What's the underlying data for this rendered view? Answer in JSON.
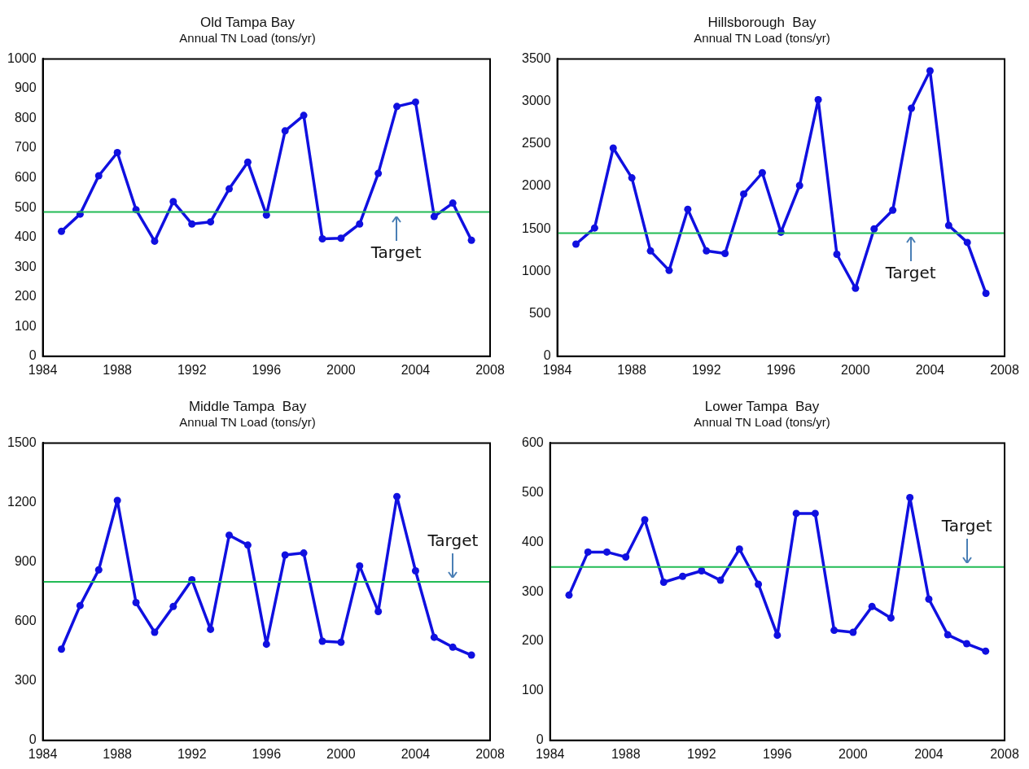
{
  "chart_data": [
    {
      "type": "line",
      "title": "Old Tampa Bay",
      "subtitle": "Annual TN Load (tons/yr)",
      "x": [
        1985,
        1986,
        1987,
        1988,
        1989,
        1990,
        1991,
        1992,
        1993,
        1994,
        1995,
        1996,
        1997,
        1998,
        1999,
        2000,
        2001,
        2002,
        2003,
        2004,
        2005,
        2006,
        2007
      ],
      "series": [
        {
          "color": "#1010e0",
          "values": [
            420,
            478,
            607,
            685,
            493,
            387,
            520,
            445,
            452,
            563,
            653,
            475,
            758,
            810,
            395,
            397,
            445,
            615,
            840,
            855,
            470,
            515,
            390
          ]
        }
      ],
      "xlim": [
        1984,
        2008
      ],
      "xticks": [
        1984,
        1988,
        1992,
        1996,
        2000,
        2004,
        2008
      ],
      "ylim": [
        0,
        1000
      ],
      "yticks": [
        0,
        100,
        200,
        300,
        400,
        500,
        600,
        700,
        800,
        900,
        1000
      ],
      "ref_lines": [
        {
          "axis": "y",
          "value": 485,
          "label": "Target",
          "color": "#22bb55"
        }
      ],
      "grid": false,
      "legend": false,
      "marker": "circle",
      "line_style": "solid"
    },
    {
      "type": "line",
      "title": "Hillsborough  Bay",
      "subtitle": "Annual TN Load (tons/yr)",
      "x": [
        1985,
        1986,
        1987,
        1988,
        1989,
        1990,
        1991,
        1992,
        1993,
        1994,
        1995,
        1996,
        1997,
        1998,
        1999,
        2000,
        2001,
        2002,
        2003,
        2004,
        2005,
        2006,
        2007
      ],
      "series": [
        {
          "color": "#1010e0",
          "values": [
            1320,
            1510,
            2450,
            2100,
            1240,
            1010,
            1730,
            1240,
            1210,
            1910,
            2160,
            1460,
            2010,
            3020,
            1200,
            800,
            1500,
            1720,
            2920,
            3360,
            1540,
            1340,
            740
          ]
        }
      ],
      "xlim": [
        1984,
        2008
      ],
      "xticks": [
        1984,
        1988,
        1992,
        1996,
        2000,
        2004,
        2008
      ],
      "ylim": [
        0,
        3500
      ],
      "yticks": [
        0,
        500,
        1000,
        1500,
        2000,
        2500,
        3000,
        3500
      ],
      "ref_lines": [
        {
          "axis": "y",
          "value": 1450,
          "label": "Target",
          "color": "#22bb55"
        }
      ],
      "grid": false,
      "legend": false,
      "marker": "circle",
      "line_style": "solid"
    },
    {
      "type": "line",
      "title": "Middle Tampa  Bay",
      "subtitle": "Annual TN Load (tons/yr)",
      "x": [
        1985,
        1986,
        1987,
        1988,
        1989,
        1990,
        1991,
        1992,
        1993,
        1994,
        1995,
        1996,
        1997,
        1998,
        1999,
        2000,
        2001,
        2002,
        2003,
        2004,
        2005,
        2006,
        2007
      ],
      "series": [
        {
          "color": "#1010e0",
          "values": [
            460,
            680,
            860,
            1210,
            695,
            545,
            675,
            810,
            560,
            1035,
            985,
            485,
            935,
            945,
            500,
            495,
            880,
            650,
            1230,
            855,
            520,
            470,
            430
          ]
        }
      ],
      "xlim": [
        1984,
        2008
      ],
      "xticks": [
        1984,
        1988,
        1992,
        1996,
        2000,
        2004,
        2008
      ],
      "ylim": [
        0,
        1500
      ],
      "yticks": [
        0,
        300,
        600,
        900,
        1200,
        1500
      ],
      "ref_lines": [
        {
          "axis": "y",
          "value": 800,
          "label": "Target",
          "color": "#22bb55"
        }
      ],
      "grid": false,
      "legend": false,
      "marker": "circle",
      "line_style": "solid"
    },
    {
      "type": "line",
      "title": "Lower Tampa  Bay",
      "subtitle": "Annual TN Load (tons/yr)",
      "x": [
        1985,
        1986,
        1987,
        1988,
        1989,
        1990,
        1991,
        1992,
        1993,
        1994,
        1995,
        1996,
        1997,
        1998,
        1999,
        2000,
        2001,
        2002,
        2003,
        2004,
        2005,
        2006,
        2007
      ],
      "series": [
        {
          "color": "#1010e0",
          "values": [
            293,
            380,
            380,
            370,
            445,
            319,
            331,
            342,
            323,
            386,
            315,
            212,
            458,
            458,
            222,
            218,
            270,
            247,
            490,
            285,
            213,
            195,
            180
          ]
        }
      ],
      "xlim": [
        1984,
        2008
      ],
      "xticks": [
        1984,
        1988,
        1992,
        1996,
        2000,
        2004,
        2008
      ],
      "ylim": [
        0,
        600
      ],
      "yticks": [
        0,
        100,
        200,
        300,
        400,
        500,
        600
      ],
      "ref_lines": [
        {
          "axis": "y",
          "value": 350,
          "label": "Target",
          "color": "#22bb55"
        }
      ],
      "grid": false,
      "legend": false,
      "marker": "circle",
      "line_style": "solid"
    }
  ]
}
